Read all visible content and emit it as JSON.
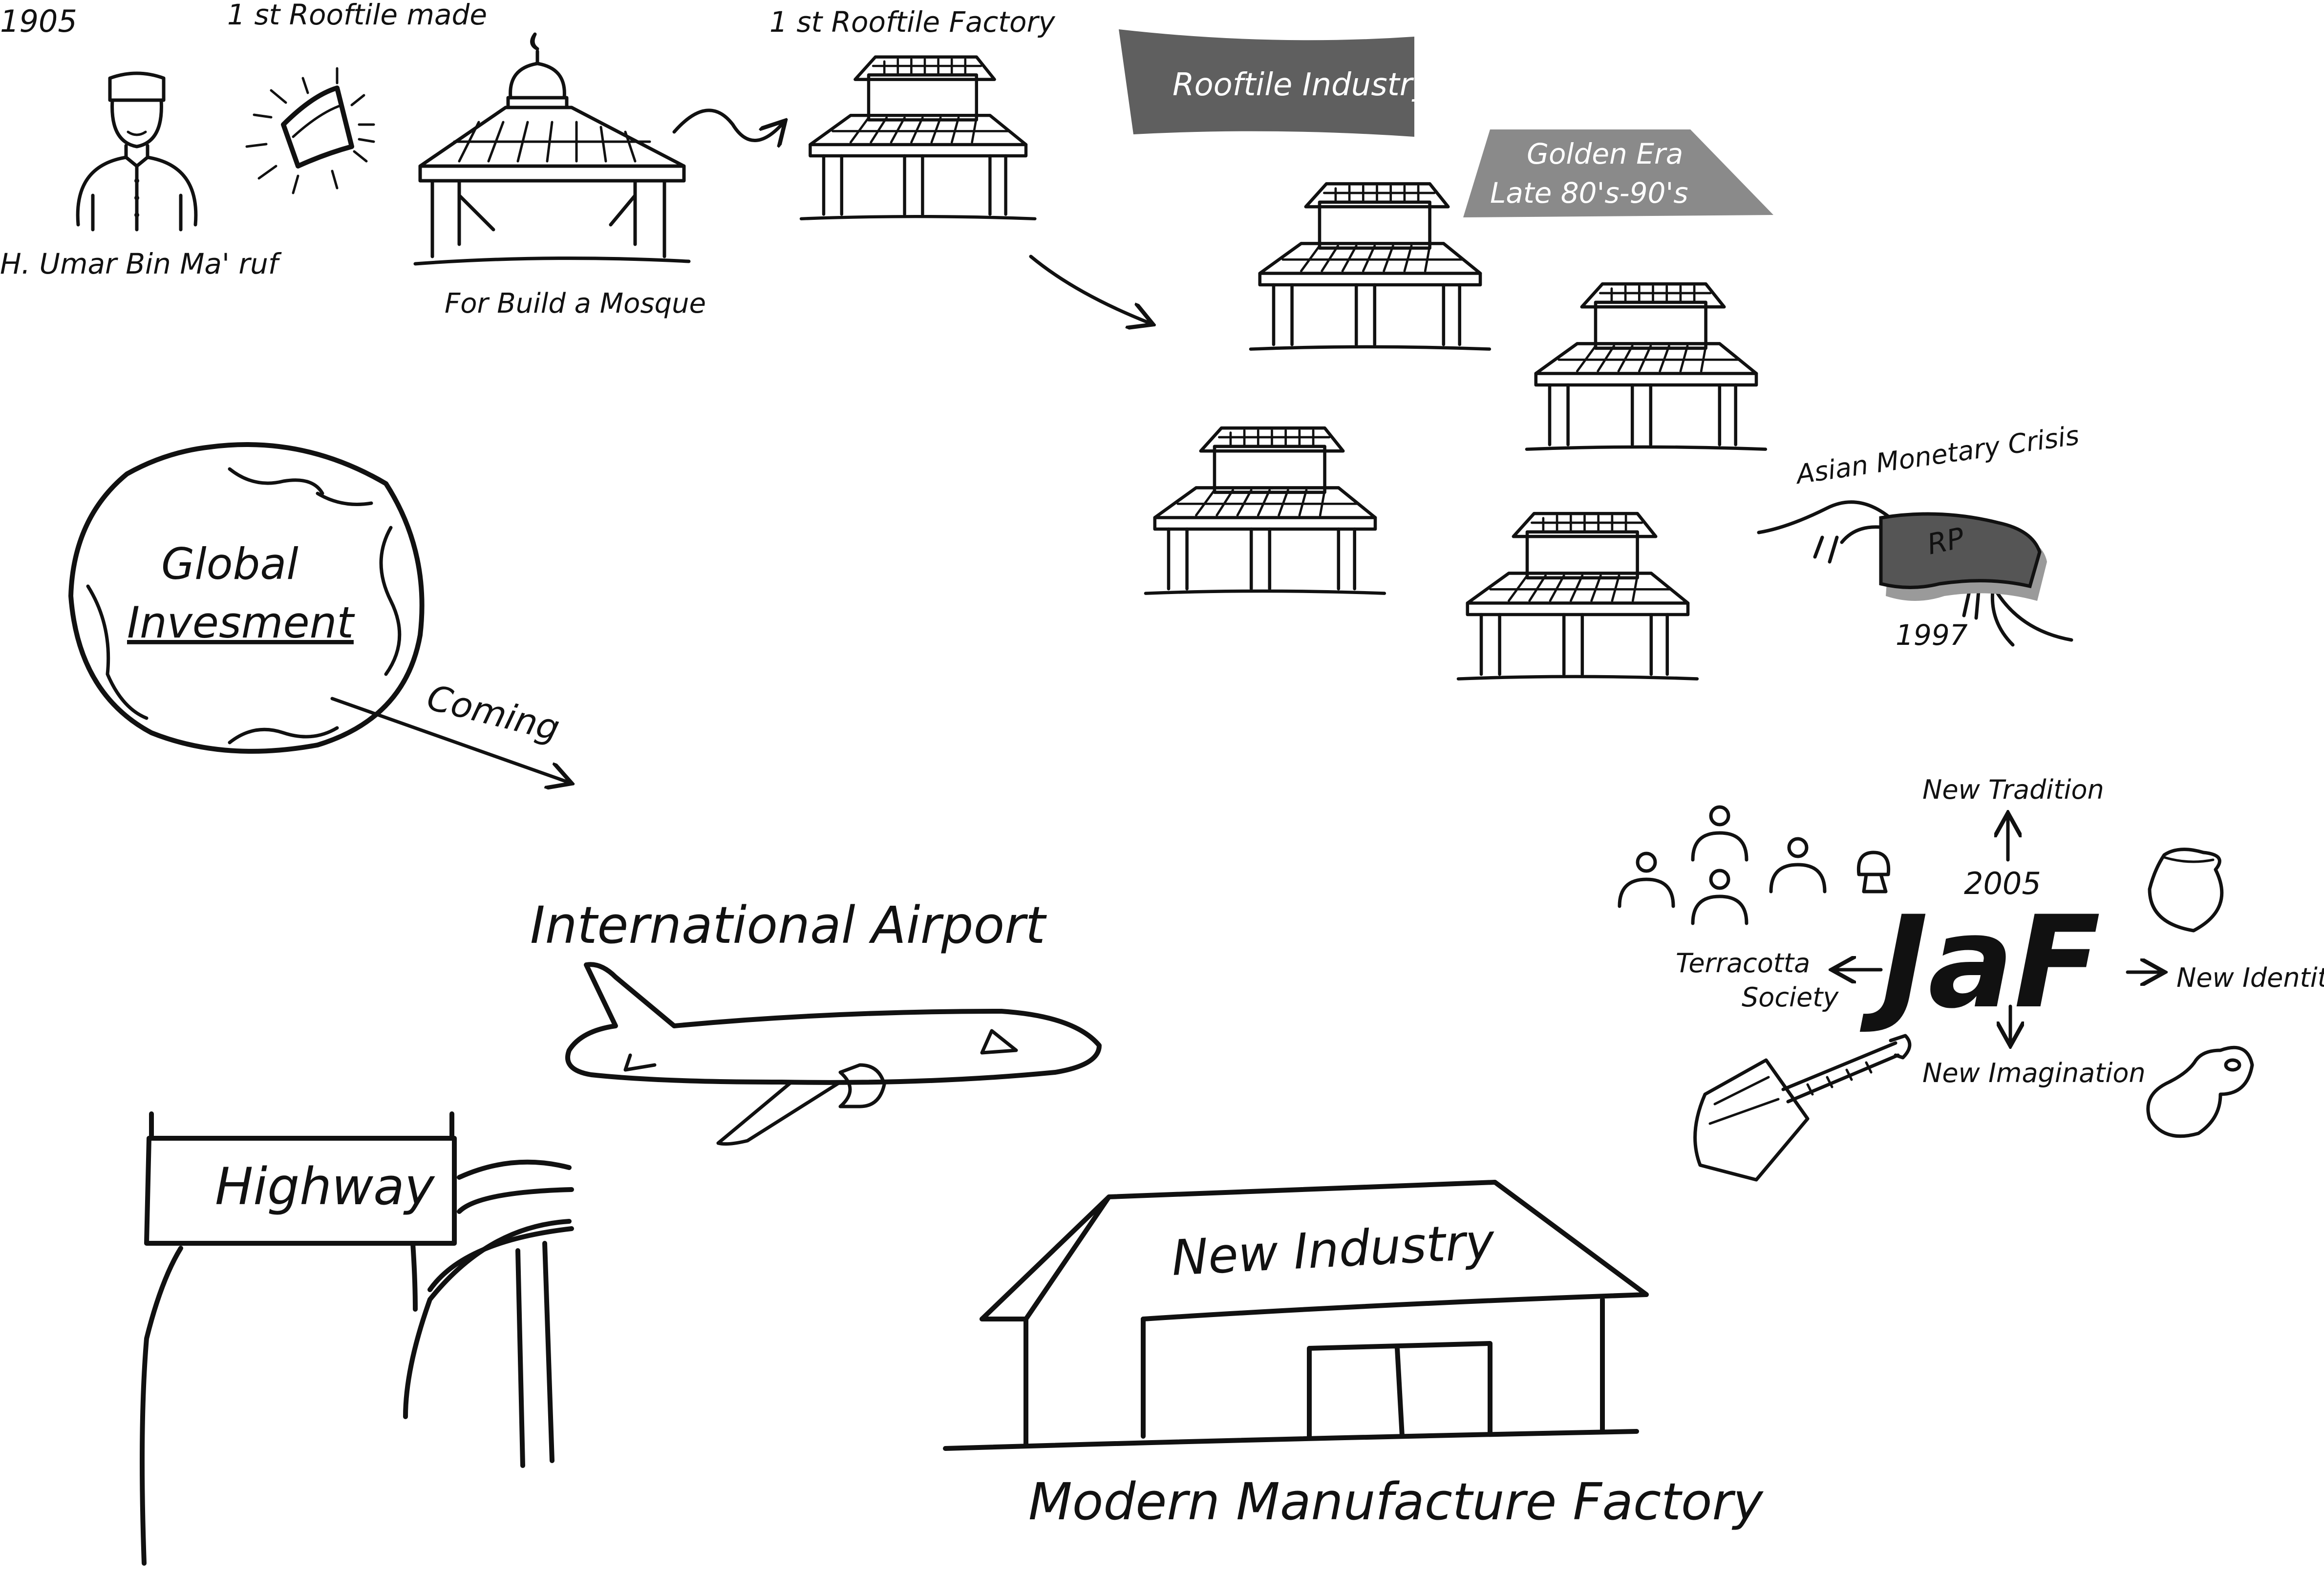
{
  "timeline": {
    "year_1905": "1905",
    "first_rooftile_made": "1 st Rooftile made",
    "founder_name": "H. Umar Bin Ma' ruf",
    "mosque_caption": "For Build a Mosque",
    "first_factory": "1 st Rooftile Factory"
  },
  "industry": {
    "flag_label": "Rooftile Industry",
    "golden_era_title": "Golden Era",
    "golden_era_period": "Late 80's-90's"
  },
  "crisis": {
    "title": "Asian Monetary Crisis",
    "currency_mark": "RP",
    "year": "1997"
  },
  "global": {
    "globe_line1": "Global",
    "globe_line2": "Invesment",
    "arrow_label": "Coming"
  },
  "infrastructure": {
    "airport": "International Airport",
    "highway": "Highway"
  },
  "factory": {
    "roof_label": "New Industry",
    "caption": "Modern Manufacture Factory"
  },
  "jaf": {
    "logo": "JaF",
    "year": "2005",
    "new_tradition": "New Tradition",
    "new_identity": "New Identity",
    "new_imagination": "New Imagination",
    "society_line1": "Terracotta",
    "society_line2": "Society"
  },
  "colors": {
    "ink": "#111111",
    "flag_fill": "#5f5f5f",
    "banner_fill": "#8a8a8a",
    "crisis_fill": "#555555",
    "paper": "#ffffff"
  },
  "icons": [
    "person-icon",
    "rooftile-icon",
    "mosque-icon",
    "stilt-house-icon",
    "globe-icon",
    "airplane-icon",
    "money-wings-icon",
    "pot-icon",
    "guitar-icon"
  ]
}
